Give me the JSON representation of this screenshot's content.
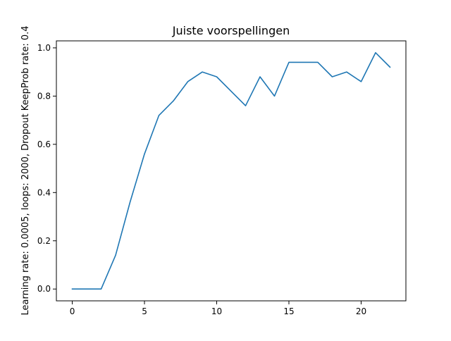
{
  "chart_data": {
    "type": "line",
    "title": "Juiste voorspellingen",
    "xlabel": "",
    "ylabel": "Learning rate: 0.0005, loops: 2000, Dropout KeepProb rate: 0.4",
    "xlim": [
      -1.1,
      23.1
    ],
    "ylim": [
      -0.049,
      1.029
    ],
    "x_ticks": [
      0,
      5,
      10,
      15,
      20
    ],
    "x_tick_labels": [
      "0",
      "5",
      "10",
      "15",
      "20"
    ],
    "y_ticks": [
      0.0,
      0.2,
      0.4,
      0.6,
      0.8,
      1.0
    ],
    "y_tick_labels": [
      "0.0",
      "0.2",
      "0.4",
      "0.6",
      "0.8",
      "1.0"
    ],
    "grid": false,
    "legend": "none",
    "series": [
      {
        "color": "#1f77b4",
        "x": [
          0,
          1,
          2,
          3,
          4,
          5,
          6,
          7,
          8,
          9,
          10,
          11,
          12,
          13,
          14,
          15,
          16,
          17,
          18,
          19,
          20,
          21,
          22
        ],
        "y": [
          0.0,
          0.0,
          0.0,
          0.14,
          0.36,
          0.56,
          0.72,
          0.78,
          0.86,
          0.9,
          0.88,
          0.82,
          0.76,
          0.88,
          0.8,
          0.94,
          0.94,
          0.94,
          0.88,
          0.9,
          0.86,
          0.98,
          0.92
        ]
      }
    ]
  }
}
